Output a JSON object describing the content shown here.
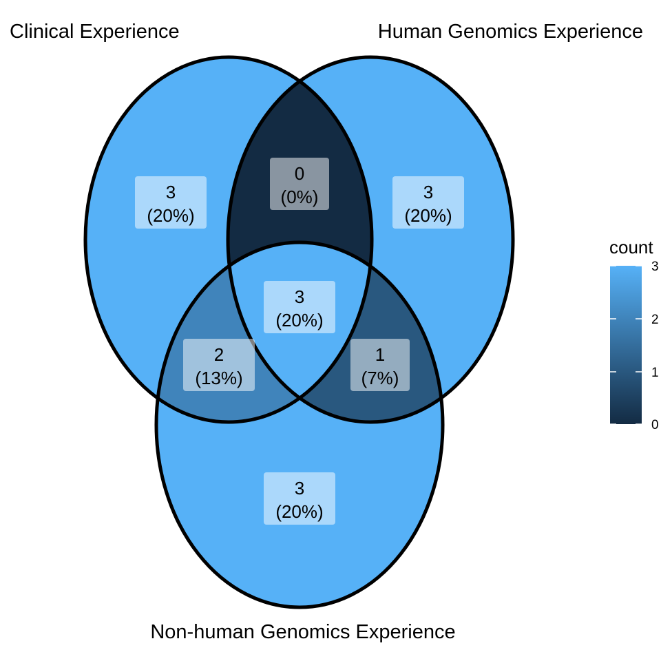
{
  "sets": [
    {
      "name": "Clinical Experience"
    },
    {
      "name": "Human Genomics Experience"
    },
    {
      "name": "Non-human Genomics Experience"
    }
  ],
  "regions": [
    {
      "id": "clinical-only",
      "count": "3",
      "percent": "(20%)",
      "value": 3
    },
    {
      "id": "clinical-human",
      "count": "0",
      "percent": "(0%)",
      "value": 0
    },
    {
      "id": "human-only",
      "count": "3",
      "percent": "(20%)",
      "value": 3
    },
    {
      "id": "all-three",
      "count": "3",
      "percent": "(20%)",
      "value": 3
    },
    {
      "id": "clinical-nonhuman",
      "count": "2",
      "percent": "(13%)",
      "value": 2
    },
    {
      "id": "human-nonhuman",
      "count": "1",
      "percent": "(7%)",
      "value": 1
    },
    {
      "id": "nonhuman-only",
      "count": "3",
      "percent": "(20%)",
      "value": 3
    }
  ],
  "legend": {
    "title": "count",
    "ticks": [
      "3",
      "2",
      "1",
      "0"
    ],
    "color_low": "#132B43",
    "color_high": "#56B1F7",
    "min": 0,
    "max": 3
  }
}
